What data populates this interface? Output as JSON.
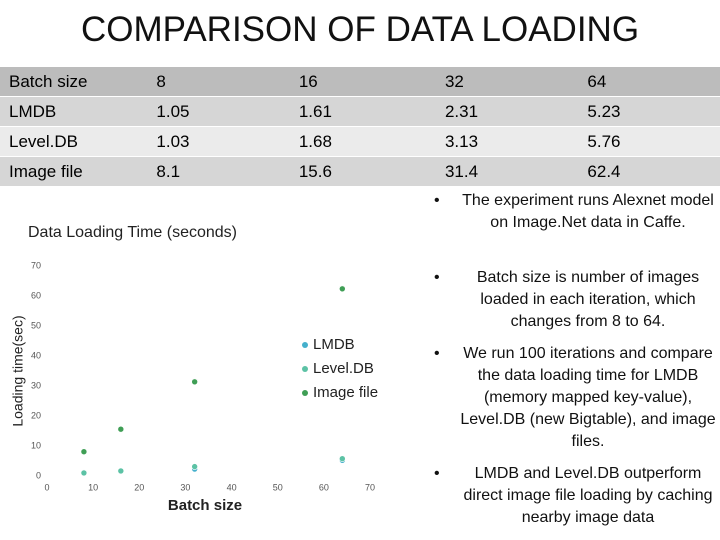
{
  "title": "COMPARISON OF DATA LOADING",
  "table": {
    "rows": [
      [
        "Batch size",
        8,
        16,
        32,
        64
      ],
      [
        "LMDB",
        1.05,
        1.61,
        2.31,
        5.23
      ],
      [
        "Level.DB",
        1.03,
        1.68,
        3.13,
        5.76
      ],
      [
        "Image file",
        8.1,
        15.6,
        31.4,
        62.4
      ]
    ]
  },
  "chart_data": {
    "type": "scatter",
    "title": "Data Loading Time (seconds)",
    "x_label": "Batch size",
    "y_label": "Loading time(sec)",
    "x": [
      8,
      16,
      32,
      64
    ],
    "series": [
      {
        "name": "LMDB",
        "color": "#45b0cc",
        "values": [
          1.05,
          1.61,
          2.31,
          5.23
        ]
      },
      {
        "name": "Level.DB",
        "color": "#5cc2a5",
        "values": [
          1.03,
          1.68,
          3.13,
          5.76
        ]
      },
      {
        "name": "Image file",
        "color": "#3f9e55",
        "values": [
          8.1,
          15.6,
          31.4,
          62.4
        ]
      }
    ],
    "xlim": [
      0,
      70
    ],
    "xticks": [
      0,
      10,
      20,
      30,
      40,
      50,
      60,
      70
    ],
    "ylim": [
      0,
      70
    ],
    "yticks": [
      0,
      10,
      20,
      30,
      40,
      50,
      60,
      70
    ],
    "grid": false,
    "legend": "center-right"
  },
  "bullets": [
    "The experiment runs Alexnet model on Image.Net data in Caffe.",
    "Batch size is number of images loaded in each iteration, which changes from 8 to 64.",
    "We run 100 iterations and compare the data loading time for LMDB (memory mapped key-value), Level.DB (new Bigtable), and image files.",
    "LMDB and Level.DB outperform direct image file loading by caching nearby image data"
  ]
}
